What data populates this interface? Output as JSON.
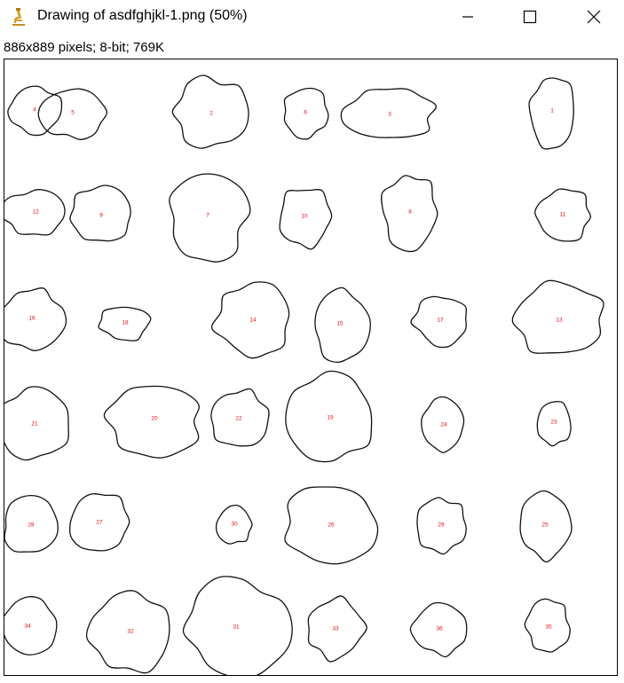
{
  "window": {
    "title": "Drawing of asdfghjkl-1.png (50%)",
    "icon": "imagej-microscope-icon",
    "controls": {
      "minimize": "minimize-icon",
      "maximize": "maximize-icon",
      "close": "close-icon"
    }
  },
  "image_info": "886x889 pixels; 8-bit; 769K",
  "drawing": {
    "stroke_color": "#111111",
    "label_color": "#e01010",
    "labels": [
      "4",
      "5",
      "2",
      "6",
      "3",
      "1",
      "12",
      "9",
      "7",
      "10",
      "8",
      "11",
      "16",
      "18",
      "14",
      "15",
      "17",
      "13",
      "21",
      "20",
      "22",
      "19",
      "24",
      "23",
      "28",
      "27",
      "30",
      "26",
      "29",
      "25",
      "34",
      "32",
      "31",
      "33",
      "36",
      "35"
    ]
  }
}
